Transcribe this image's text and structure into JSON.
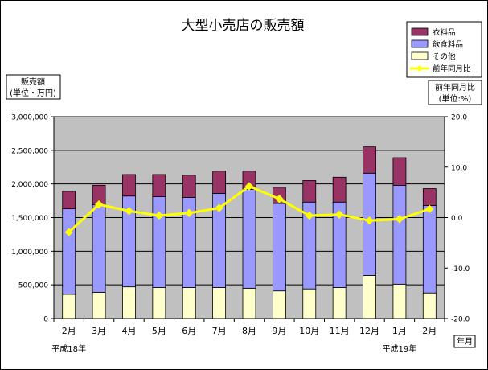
{
  "chart_data": {
    "type": "bar",
    "stacked": true,
    "title": "大型小売店の販売額",
    "categories": [
      "2月",
      "3月",
      "4月",
      "5月",
      "6月",
      "7月",
      "8月",
      "9月",
      "10月",
      "11月",
      "12月",
      "1月",
      "2月"
    ],
    "year_labels": [
      {
        "text": "平成18年",
        "category_index": 0
      },
      {
        "text": "平成19年",
        "category_index": 11
      }
    ],
    "series": [
      {
        "name": "衣料品",
        "kind": "bar",
        "color": "#993366",
        "values": [
          260000,
          290000,
          320000,
          330000,
          330000,
          330000,
          270000,
          240000,
          320000,
          370000,
          390000,
          410000,
          250000
        ]
      },
      {
        "name": "飲食料品",
        "kind": "bar",
        "color": "#9999ff",
        "values": [
          1270000,
          1300000,
          1350000,
          1350000,
          1340000,
          1400000,
          1470000,
          1300000,
          1290000,
          1270000,
          1520000,
          1470000,
          1300000
        ]
      },
      {
        "name": "その他",
        "kind": "bar",
        "color": "#ffffcc",
        "values": [
          360000,
          390000,
          470000,
          460000,
          460000,
          460000,
          450000,
          410000,
          440000,
          460000,
          640000,
          510000,
          380000
        ]
      },
      {
        "name": "前年同月比",
        "kind": "line",
        "axis": "right",
        "color": "#ffff00",
        "values": [
          -2.9,
          2.6,
          1.3,
          0.4,
          0.9,
          1.9,
          6.2,
          3.7,
          0.4,
          0.6,
          -0.6,
          -0.3,
          1.7
        ]
      }
    ],
    "y_left": {
      "label_lines": [
        "販売額",
        "(単位・万円)"
      ],
      "min": 0,
      "max": 3000000,
      "step": 500000,
      "tick_labels": [
        "0",
        "500,000",
        "1,000,000",
        "1,500,000",
        "2,000,000",
        "2,500,000",
        "3,000,000"
      ]
    },
    "y_right": {
      "label_lines": [
        "前年同月比",
        "(単位:%)"
      ],
      "min": -20,
      "max": 20,
      "step": 10,
      "tick_labels": [
        "-20.0",
        "-10.0",
        "0.0",
        "10.0",
        "20.0"
      ]
    },
    "x_unit_label": "年月",
    "grid": true,
    "legend_position": "top-right"
  }
}
